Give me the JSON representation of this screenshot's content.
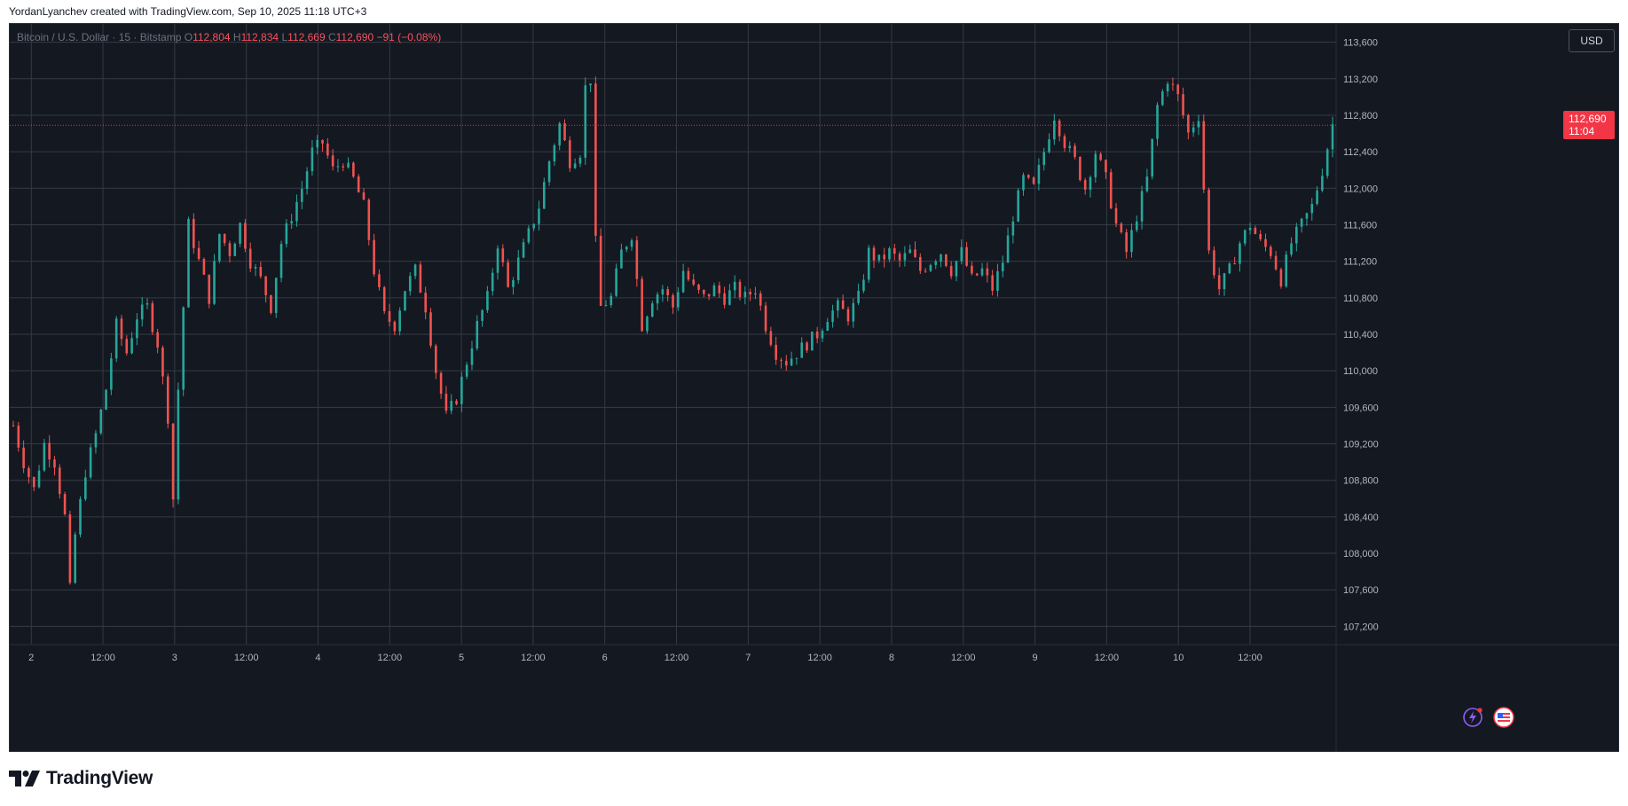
{
  "header": {
    "caption": "YordanLyanchev created with TradingView.com, Sep 10, 2025 11:18 UTC+3"
  },
  "legend": {
    "symbol": "Bitcoin / U.S. Dollar · 15 · Bitstamp",
    "open_label": "O",
    "open_value": "112,804",
    "high_label": "H",
    "high_value": "112,834",
    "low_label": "L",
    "low_value": "112,669",
    "close_label": "C",
    "close_value": "112,690",
    "change": "−91 (−0.08%)"
  },
  "currency_label": "USD",
  "price_tag": {
    "price": "112,690",
    "countdown": "11:04"
  },
  "footer": {
    "brand": "TradingView"
  },
  "icons": {
    "logo": "tradingview-logo-icon",
    "lightning": "lightning-icon",
    "flag": "us-flag-icon"
  },
  "colors": {
    "up": "#26a69a",
    "down": "#ef5350",
    "background": "#141821",
    "grid": "#363a45",
    "last_price": "#f23645"
  },
  "chart_data": {
    "type": "candlestick",
    "title": "Bitcoin / U.S. Dollar · 15 · Bitstamp",
    "interval": "15",
    "ylim": [
      107000,
      113800
    ],
    "y_ticks": [
      "113,600",
      "113,200",
      "112,800",
      "112,400",
      "112,000",
      "111,600",
      "111,200",
      "110,800",
      "110,400",
      "110,000",
      "109,600",
      "109,200",
      "108,800",
      "108,400",
      "108,000",
      "107,600",
      "107,200"
    ],
    "x_ticks": [
      "2",
      "12:00",
      "3",
      "12:00",
      "4",
      "12:00",
      "5",
      "12:00",
      "6",
      "12:00",
      "7",
      "12:00",
      "8",
      "12:00",
      "9",
      "12:00",
      "10",
      "12:00"
    ],
    "last_price": 112690,
    "grid": true,
    "price_path": [
      [
        0,
        109400
      ],
      [
        2,
        109000
      ],
      [
        4,
        108700
      ],
      [
        6,
        109200
      ],
      [
        8,
        109000
      ],
      [
        10,
        108400
      ],
      [
        11,
        107600
      ],
      [
        12,
        108200
      ],
      [
        14,
        108900
      ],
      [
        16,
        109300
      ],
      [
        18,
        109800
      ],
      [
        20,
        110500
      ],
      [
        22,
        110200
      ],
      [
        24,
        110600
      ],
      [
        26,
        110700
      ],
      [
        28,
        110300
      ],
      [
        30,
        109500
      ],
      [
        31,
        108600
      ],
      [
        32,
        109800
      ],
      [
        34,
        111600
      ],
      [
        36,
        111200
      ],
      [
        38,
        110800
      ],
      [
        40,
        111500
      ],
      [
        42,
        111300
      ],
      [
        44,
        111600
      ],
      [
        46,
        111200
      ],
      [
        48,
        111000
      ],
      [
        50,
        110700
      ],
      [
        52,
        111400
      ],
      [
        54,
        111700
      ],
      [
        56,
        112000
      ],
      [
        58,
        112400
      ],
      [
        60,
        112500
      ],
      [
        62,
        112200
      ],
      [
        64,
        112300
      ],
      [
        66,
        112100
      ],
      [
        68,
        111800
      ],
      [
        70,
        111100
      ],
      [
        72,
        110600
      ],
      [
        74,
        110500
      ],
      [
        76,
        110900
      ],
      [
        78,
        111100
      ],
      [
        80,
        110700
      ],
      [
        82,
        110000
      ],
      [
        84,
        109500
      ],
      [
        86,
        109700
      ],
      [
        88,
        110100
      ],
      [
        90,
        110500
      ],
      [
        92,
        110800
      ],
      [
        94,
        111400
      ],
      [
        96,
        110900
      ],
      [
        98,
        111200
      ],
      [
        100,
        111500
      ],
      [
        102,
        111800
      ],
      [
        104,
        112300
      ],
      [
        106,
        112700
      ],
      [
        108,
        112300
      ],
      [
        110,
        112400
      ],
      [
        111,
        113100
      ],
      [
        112,
        113200
      ],
      [
        113,
        111400
      ],
      [
        114,
        110700
      ],
      [
        116,
        110800
      ],
      [
        118,
        111300
      ],
      [
        120,
        111500
      ],
      [
        122,
        110500
      ],
      [
        124,
        110800
      ],
      [
        126,
        110900
      ],
      [
        128,
        110700
      ],
      [
        130,
        111100
      ],
      [
        132,
        110900
      ],
      [
        134,
        110800
      ],
      [
        136,
        110900
      ],
      [
        138,
        110800
      ],
      [
        140,
        110900
      ],
      [
        142,
        110800
      ],
      [
        144,
        110900
      ],
      [
        146,
        110500
      ],
      [
        148,
        110200
      ],
      [
        150,
        110100
      ],
      [
        152,
        110200
      ],
      [
        154,
        110300
      ],
      [
        156,
        110400
      ],
      [
        158,
        110600
      ],
      [
        160,
        110700
      ],
      [
        162,
        110600
      ],
      [
        164,
        110800
      ],
      [
        166,
        111300
      ],
      [
        168,
        111200
      ],
      [
        170,
        111300
      ],
      [
        172,
        111200
      ],
      [
        174,
        111300
      ],
      [
        176,
        111100
      ],
      [
        178,
        111200
      ],
      [
        180,
        111300
      ],
      [
        182,
        111100
      ],
      [
        184,
        111300
      ],
      [
        186,
        111000
      ],
      [
        188,
        111100
      ],
      [
        190,
        110900
      ],
      [
        192,
        111200
      ],
      [
        194,
        111700
      ],
      [
        196,
        112100
      ],
      [
        198,
        112000
      ],
      [
        200,
        112400
      ],
      [
        202,
        112800
      ],
      [
        204,
        112500
      ],
      [
        206,
        112300
      ],
      [
        208,
        112000
      ],
      [
        210,
        112400
      ],
      [
        212,
        112100
      ],
      [
        214,
        111600
      ],
      [
        216,
        111300
      ],
      [
        218,
        111700
      ],
      [
        220,
        112100
      ],
      [
        222,
        112900
      ],
      [
        224,
        113200
      ],
      [
        226,
        113000
      ],
      [
        228,
        112600
      ],
      [
        230,
        112800
      ],
      [
        231,
        112000
      ],
      [
        232,
        111300
      ],
      [
        234,
        110900
      ],
      [
        236,
        111100
      ],
      [
        238,
        111400
      ],
      [
        240,
        111600
      ],
      [
        242,
        111400
      ],
      [
        244,
        111300
      ],
      [
        246,
        111000
      ],
      [
        248,
        111400
      ],
      [
        250,
        111600
      ],
      [
        252,
        111800
      ],
      [
        254,
        112200
      ],
      [
        256,
        112700
      ]
    ],
    "n_candles": 257
  }
}
